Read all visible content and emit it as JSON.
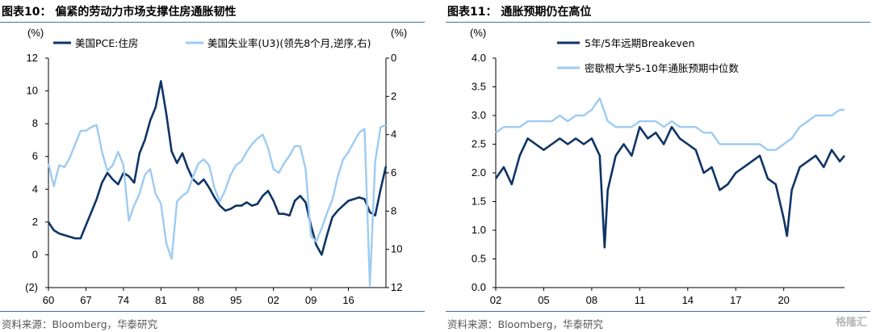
{
  "left": {
    "title": "图表10： 偏紧的劳动力市场支撑住房通胀韧性",
    "source": "资料来源：Bloomberg，华泰研究",
    "chart_data": {
      "type": "line",
      "left_unit": "(%)",
      "right_unit": "(%)",
      "ylim_left": [
        -2,
        12
      ],
      "ylim_right": [
        12,
        0
      ],
      "right_axis_inverted": true,
      "x_range": [
        1960,
        2023
      ],
      "x_tick_labels": [
        "60",
        "67",
        "74",
        "81",
        "88",
        "95",
        "02",
        "09",
        "16"
      ],
      "y_left_ticks": [
        "(2)",
        "0",
        "2",
        "4",
        "6",
        "8",
        "10",
        "12"
      ],
      "y_right_ticks": [
        "0",
        "2",
        "4",
        "6",
        "8",
        "10",
        "12"
      ],
      "legend_position": "top",
      "series": [
        {
          "name": "美国PCE:住房",
          "axis": "left",
          "color": "#0f3466",
          "points": [
            [
              1960,
              2.0
            ],
            [
              1961,
              1.5
            ],
            [
              1962,
              1.3
            ],
            [
              1963,
              1.2
            ],
            [
              1964,
              1.1
            ],
            [
              1965,
              1.0
            ],
            [
              1966,
              1.0
            ],
            [
              1967,
              1.8
            ],
            [
              1968,
              2.6
            ],
            [
              1969,
              3.4
            ],
            [
              1970,
              4.4
            ],
            [
              1971,
              5.0
            ],
            [
              1972,
              4.6
            ],
            [
              1973,
              4.3
            ],
            [
              1974,
              5.0
            ],
            [
              1975,
              4.8
            ],
            [
              1976,
              4.4
            ],
            [
              1977,
              6.2
            ],
            [
              1978,
              7.0
            ],
            [
              1979,
              8.2
            ],
            [
              1980,
              9.0
            ],
            [
              1981,
              10.6
            ],
            [
              1982,
              8.6
            ],
            [
              1983,
              6.3
            ],
            [
              1984,
              5.6
            ],
            [
              1985,
              6.2
            ],
            [
              1986,
              5.3
            ],
            [
              1987,
              4.6
            ],
            [
              1988,
              4.3
            ],
            [
              1989,
              4.6
            ],
            [
              1990,
              4.1
            ],
            [
              1991,
              3.5
            ],
            [
              1992,
              3.0
            ],
            [
              1993,
              2.7
            ],
            [
              1994,
              2.8
            ],
            [
              1995,
              3.0
            ],
            [
              1996,
              3.0
            ],
            [
              1997,
              3.2
            ],
            [
              1998,
              3.0
            ],
            [
              1999,
              3.1
            ],
            [
              2000,
              3.6
            ],
            [
              2001,
              3.9
            ],
            [
              2002,
              3.3
            ],
            [
              2003,
              2.5
            ],
            [
              2004,
              2.5
            ],
            [
              2005,
              2.4
            ],
            [
              2006,
              3.3
            ],
            [
              2007,
              3.6
            ],
            [
              2008,
              3.2
            ],
            [
              2009,
              1.8
            ],
            [
              2010,
              0.6
            ],
            [
              2011,
              0.0
            ],
            [
              2012,
              1.2
            ],
            [
              2013,
              2.3
            ],
            [
              2014,
              2.7
            ],
            [
              2015,
              3.0
            ],
            [
              2016,
              3.3
            ],
            [
              2017,
              3.4
            ],
            [
              2018,
              3.5
            ],
            [
              2019,
              3.4
            ],
            [
              2020,
              2.6
            ],
            [
              2021,
              2.4
            ],
            [
              2022,
              4.0
            ],
            [
              2023,
              5.4
            ]
          ]
        },
        {
          "name": "美国失业率(U3)(领先8个月,逆序,右)",
          "axis": "right",
          "color": "#9ecbf2",
          "points": [
            [
              1960,
              5.5
            ],
            [
              1961,
              6.7
            ],
            [
              1962,
              5.6
            ],
            [
              1963,
              5.7
            ],
            [
              1964,
              5.2
            ],
            [
              1965,
              4.5
            ],
            [
              1966,
              3.8
            ],
            [
              1967,
              3.8
            ],
            [
              1968,
              3.6
            ],
            [
              1969,
              3.5
            ],
            [
              1970,
              4.9
            ],
            [
              1971,
              5.9
            ],
            [
              1972,
              5.6
            ],
            [
              1973,
              4.9
            ],
            [
              1974,
              5.6
            ],
            [
              1975,
              8.5
            ],
            [
              1976,
              7.7
            ],
            [
              1977,
              7.1
            ],
            [
              1978,
              6.1
            ],
            [
              1979,
              5.8
            ],
            [
              1980,
              7.1
            ],
            [
              1981,
              7.6
            ],
            [
              1982,
              9.7
            ],
            [
              1983,
              10.5
            ],
            [
              1984,
              7.5
            ],
            [
              1985,
              7.2
            ],
            [
              1986,
              7.0
            ],
            [
              1987,
              6.2
            ],
            [
              1988,
              5.5
            ],
            [
              1989,
              5.3
            ],
            [
              1990,
              5.6
            ],
            [
              1991,
              6.8
            ],
            [
              1992,
              7.5
            ],
            [
              1993,
              6.9
            ],
            [
              1994,
              6.1
            ],
            [
              1995,
              5.6
            ],
            [
              1996,
              5.4
            ],
            [
              1997,
              4.9
            ],
            [
              1998,
              4.5
            ],
            [
              1999,
              4.2
            ],
            [
              2000,
              4.0
            ],
            [
              2001,
              4.7
            ],
            [
              2002,
              5.8
            ],
            [
              2003,
              6.0
            ],
            [
              2004,
              5.5
            ],
            [
              2005,
              5.1
            ],
            [
              2006,
              4.6
            ],
            [
              2007,
              4.6
            ],
            [
              2008,
              5.8
            ],
            [
              2009,
              9.3
            ],
            [
              2010,
              9.6
            ],
            [
              2011,
              8.9
            ],
            [
              2012,
              8.1
            ],
            [
              2013,
              7.4
            ],
            [
              2014,
              6.2
            ],
            [
              2015,
              5.3
            ],
            [
              2016,
              4.9
            ],
            [
              2017,
              4.4
            ],
            [
              2018,
              3.9
            ],
            [
              2019,
              3.7
            ],
            [
              2020,
              11.9
            ],
            [
              2021,
              5.4
            ],
            [
              2022,
              3.6
            ],
            [
              2023,
              3.5
            ]
          ]
        }
      ]
    }
  },
  "right": {
    "title": "图表11： 通胀预期仍在高位",
    "source": "资料来源：Bloomberg，华泰研究",
    "chart_data": {
      "type": "line",
      "y_unit": "(%)",
      "ylim": [
        0.0,
        4.0
      ],
      "y_ticks": [
        "0.0",
        "0.5",
        "1.0",
        "1.5",
        "2.0",
        "2.5",
        "3.0",
        "3.5",
        "4.0"
      ],
      "x_range": [
        2002,
        2023.8
      ],
      "x_tick_labels": [
        "02",
        "05",
        "08",
        "11",
        "14",
        "17",
        "20"
      ],
      "legend_position": "top-left",
      "series": [
        {
          "name": "5年/5年远期Breakeven",
          "color": "#0f3466",
          "points": [
            [
              2002,
              1.9
            ],
            [
              2002.5,
              2.1
            ],
            [
              2003,
              1.8
            ],
            [
              2003.5,
              2.3
            ],
            [
              2004,
              2.6
            ],
            [
              2004.5,
              2.5
            ],
            [
              2005,
              2.4
            ],
            [
              2005.5,
              2.5
            ],
            [
              2006,
              2.6
            ],
            [
              2006.5,
              2.5
            ],
            [
              2007,
              2.6
            ],
            [
              2007.5,
              2.5
            ],
            [
              2008,
              2.6
            ],
            [
              2008.5,
              2.3
            ],
            [
              2008.8,
              0.7
            ],
            [
              2009,
              1.7
            ],
            [
              2009.5,
              2.3
            ],
            [
              2010,
              2.5
            ],
            [
              2010.5,
              2.3
            ],
            [
              2011,
              2.8
            ],
            [
              2011.5,
              2.6
            ],
            [
              2012,
              2.7
            ],
            [
              2012.5,
              2.5
            ],
            [
              2013,
              2.8
            ],
            [
              2013.5,
              2.6
            ],
            [
              2014,
              2.5
            ],
            [
              2014.5,
              2.4
            ],
            [
              2015,
              2.0
            ],
            [
              2015.5,
              2.1
            ],
            [
              2016,
              1.7
            ],
            [
              2016.5,
              1.8
            ],
            [
              2017,
              2.0
            ],
            [
              2017.5,
              2.1
            ],
            [
              2018,
              2.2
            ],
            [
              2018.5,
              2.3
            ],
            [
              2019,
              1.9
            ],
            [
              2019.5,
              1.8
            ],
            [
              2020,
              1.2
            ],
            [
              2020.2,
              0.9
            ],
            [
              2020.5,
              1.7
            ],
            [
              2021,
              2.1
            ],
            [
              2021.5,
              2.2
            ],
            [
              2022,
              2.3
            ],
            [
              2022.5,
              2.1
            ],
            [
              2023,
              2.4
            ],
            [
              2023.5,
              2.2
            ],
            [
              2023.8,
              2.3
            ]
          ]
        },
        {
          "name": "密歇根大学5-10年通胀预期中位数",
          "color": "#9ecbf2",
          "points": [
            [
              2002,
              2.7
            ],
            [
              2002.5,
              2.8
            ],
            [
              2003,
              2.8
            ],
            [
              2003.5,
              2.8
            ],
            [
              2004,
              2.9
            ],
            [
              2004.5,
              2.9
            ],
            [
              2005,
              2.9
            ],
            [
              2005.5,
              2.9
            ],
            [
              2006,
              3.0
            ],
            [
              2006.5,
              2.9
            ],
            [
              2007,
              3.0
            ],
            [
              2007.5,
              3.0
            ],
            [
              2008,
              3.1
            ],
            [
              2008.5,
              3.3
            ],
            [
              2009,
              2.9
            ],
            [
              2009.5,
              2.8
            ],
            [
              2010,
              2.8
            ],
            [
              2010.5,
              2.8
            ],
            [
              2011,
              2.9
            ],
            [
              2011.5,
              2.9
            ],
            [
              2012,
              2.9
            ],
            [
              2012.5,
              2.8
            ],
            [
              2013,
              2.9
            ],
            [
              2013.5,
              2.8
            ],
            [
              2014,
              2.8
            ],
            [
              2014.5,
              2.8
            ],
            [
              2015,
              2.7
            ],
            [
              2015.5,
              2.7
            ],
            [
              2016,
              2.5
            ],
            [
              2016.5,
              2.5
            ],
            [
              2017,
              2.5
            ],
            [
              2017.5,
              2.5
            ],
            [
              2018,
              2.5
            ],
            [
              2018.5,
              2.5
            ],
            [
              2019,
              2.4
            ],
            [
              2019.5,
              2.4
            ],
            [
              2020,
              2.5
            ],
            [
              2020.5,
              2.6
            ],
            [
              2021,
              2.8
            ],
            [
              2021.5,
              2.9
            ],
            [
              2022,
              3.0
            ],
            [
              2022.5,
              3.0
            ],
            [
              2023,
              3.0
            ],
            [
              2023.5,
              3.1
            ],
            [
              2023.8,
              3.1
            ]
          ]
        }
      ]
    }
  },
  "watermark": "格隆汇"
}
